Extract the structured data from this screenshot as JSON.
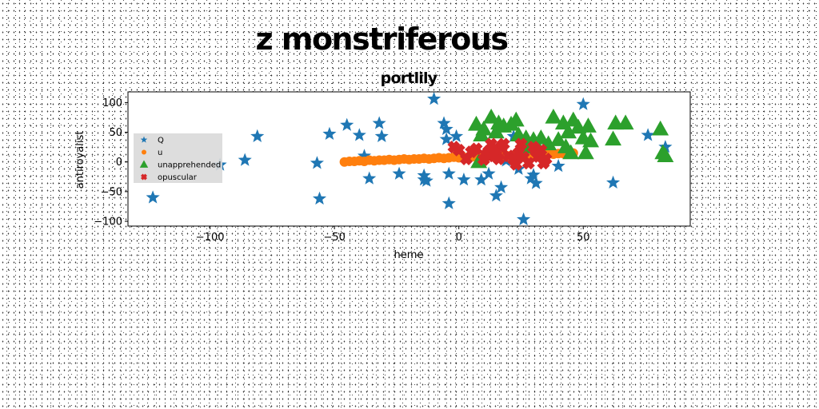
{
  "figure": {
    "suptitle": "z monstriferous"
  },
  "chart_data": {
    "type": "scatter",
    "title": "portlily",
    "xlabel": "heme",
    "ylabel": "antiroyalist",
    "xlim": [
      -133,
      93
    ],
    "ylim": [
      -108,
      118
    ],
    "xticks": [
      -100,
      -50,
      0,
      50
    ],
    "yticks": [
      -100,
      -50,
      0,
      50,
      100
    ],
    "xtick_labels": [
      "−100",
      "−50",
      "0",
      "50"
    ],
    "ytick_labels": [
      "−100",
      "−50",
      "0",
      "50",
      "100"
    ],
    "grid": false,
    "legend": {
      "position": "center-left"
    },
    "series": [
      {
        "name": "Q",
        "marker": "star",
        "color": "#1f77b4",
        "points": [
          [
            -123,
            -60
          ],
          [
            -96,
            -5
          ],
          [
            -86,
            3
          ],
          [
            -81,
            43
          ],
          [
            -57,
            -2
          ],
          [
            -56,
            -62
          ],
          [
            -52,
            47
          ],
          [
            -45,
            62
          ],
          [
            -40,
            45
          ],
          [
            -38,
            10
          ],
          [
            -36,
            -28
          ],
          [
            -32,
            65
          ],
          [
            -31,
            43
          ],
          [
            -24,
            -20
          ],
          [
            -14,
            -23
          ],
          [
            -14,
            -30
          ],
          [
            -13,
            -32
          ],
          [
            -10,
            106
          ],
          [
            -6,
            65
          ],
          [
            -5,
            55
          ],
          [
            -5,
            38
          ],
          [
            -4,
            -70
          ],
          [
            -4,
            -20
          ],
          [
            -1,
            43
          ],
          [
            2,
            -30
          ],
          [
            9,
            -30
          ],
          [
            12,
            -20
          ],
          [
            15,
            -57
          ],
          [
            17,
            -43
          ],
          [
            19,
            2
          ],
          [
            22,
            43
          ],
          [
            24,
            -12
          ],
          [
            26,
            -97
          ],
          [
            29,
            -28
          ],
          [
            30,
            -22
          ],
          [
            31,
            -36
          ],
          [
            40,
            -7
          ],
          [
            50,
            97
          ],
          [
            62,
            -35
          ],
          [
            76,
            45
          ],
          [
            83,
            25
          ]
        ]
      },
      {
        "name": "u",
        "marker": "circle",
        "color": "#ff7f0e",
        "points": [
          [
            -46,
            0
          ],
          [
            -44,
            1
          ],
          [
            -42,
            1
          ],
          [
            -40,
            2
          ],
          [
            -38,
            1
          ],
          [
            -36,
            3
          ],
          [
            -34,
            2
          ],
          [
            -32,
            3
          ],
          [
            -30,
            3
          ],
          [
            -28,
            4
          ],
          [
            -26,
            3
          ],
          [
            -24,
            4
          ],
          [
            -22,
            5
          ],
          [
            -20,
            4
          ],
          [
            -18,
            5
          ],
          [
            -16,
            5
          ],
          [
            -14,
            6
          ],
          [
            -12,
            5
          ],
          [
            -10,
            6
          ],
          [
            -8,
            7
          ],
          [
            -6,
            6
          ],
          [
            -4,
            7
          ],
          [
            -2,
            8
          ],
          [
            0,
            7
          ],
          [
            2,
            8
          ],
          [
            4,
            8
          ],
          [
            6,
            9
          ],
          [
            8,
            8
          ],
          [
            10,
            9
          ],
          [
            12,
            10
          ],
          [
            14,
            9
          ],
          [
            16,
            10
          ],
          [
            18,
            11
          ],
          [
            20,
            10
          ],
          [
            22,
            11
          ],
          [
            24,
            11
          ],
          [
            26,
            12
          ],
          [
            28,
            12
          ],
          [
            30,
            13
          ],
          [
            32,
            12
          ],
          [
            34,
            13
          ],
          [
            36,
            14
          ],
          [
            38,
            13
          ],
          [
            40,
            14
          ],
          [
            42,
            14
          ],
          [
            44,
            15
          ],
          [
            46,
            15
          ]
        ]
      },
      {
        "name": "unapprehended",
        "marker": "triangle",
        "color": "#2ca02c",
        "points": [
          [
            7,
            63
          ],
          [
            8,
            0
          ],
          [
            9,
            45
          ],
          [
            10,
            55
          ],
          [
            12,
            20
          ],
          [
            13,
            75
          ],
          [
            15,
            50
          ],
          [
            16,
            65
          ],
          [
            18,
            60
          ],
          [
            21,
            63
          ],
          [
            23,
            70
          ],
          [
            24,
            45
          ],
          [
            27,
            40
          ],
          [
            28,
            25
          ],
          [
            30,
            37
          ],
          [
            33,
            40
          ],
          [
            36,
            30
          ],
          [
            38,
            75
          ],
          [
            40,
            37
          ],
          [
            42,
            65
          ],
          [
            43,
            25
          ],
          [
            44,
            50
          ],
          [
            45,
            15
          ],
          [
            46,
            70
          ],
          [
            48,
            58
          ],
          [
            50,
            40
          ],
          [
            51,
            15
          ],
          [
            52,
            60
          ],
          [
            53,
            35
          ],
          [
            62,
            38
          ],
          [
            63,
            65
          ],
          [
            67,
            65
          ],
          [
            81,
            55
          ],
          [
            82,
            15
          ],
          [
            83,
            10
          ]
        ]
      },
      {
        "name": "opuscular",
        "marker": "x",
        "color": "#d62728",
        "points": [
          [
            -2,
            25
          ],
          [
            0,
            20
          ],
          [
            3,
            5
          ],
          [
            5,
            17
          ],
          [
            7,
            22
          ],
          [
            10,
            4
          ],
          [
            11,
            12
          ],
          [
            12,
            18
          ],
          [
            13,
            30
          ],
          [
            14,
            10
          ],
          [
            15,
            20
          ],
          [
            16,
            5
          ],
          [
            17,
            25
          ],
          [
            18,
            30
          ],
          [
            20,
            10
          ],
          [
            22,
            4
          ],
          [
            23,
            -4
          ],
          [
            24,
            15
          ],
          [
            25,
            30
          ],
          [
            26,
            8
          ],
          [
            28,
            -2
          ],
          [
            30,
            25
          ],
          [
            31,
            18
          ],
          [
            32,
            9
          ],
          [
            33,
            20
          ],
          [
            34,
            -2
          ],
          [
            35,
            5
          ]
        ]
      }
    ]
  }
}
